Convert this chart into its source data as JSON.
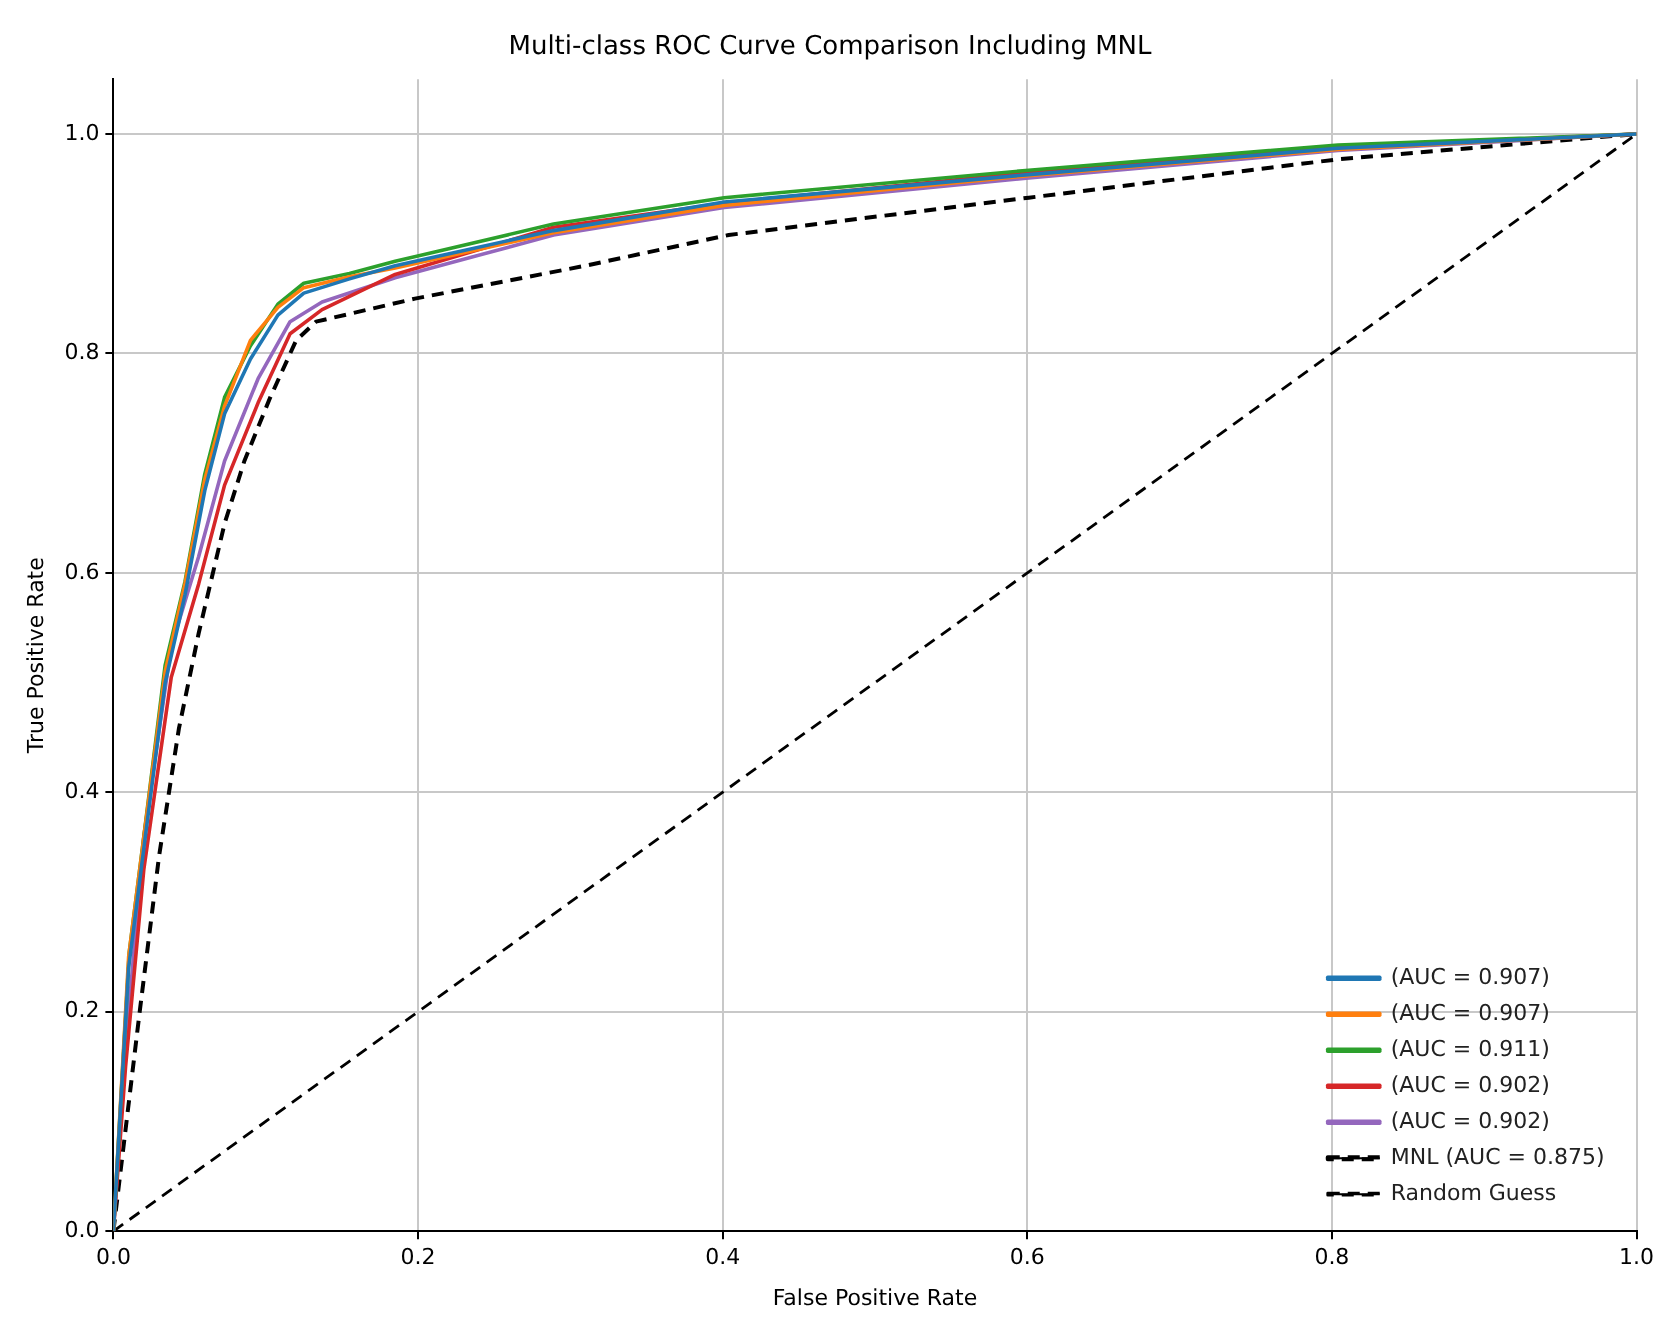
{
  "chart_data": {
    "type": "line",
    "title": "Multi-class ROC Curve Comparison Including MNL",
    "xlabel": "False Positive Rate",
    "ylabel": "True Positive Rate",
    "xlim": [
      0,
      1
    ],
    "ylim": [
      0,
      1.05
    ],
    "xticks": [
      {
        "value": 0,
        "label": "0.0"
      },
      {
        "value": 0.2,
        "label": "0.2"
      },
      {
        "value": 0.4,
        "label": "0.4"
      },
      {
        "value": 0.6,
        "label": "0.6"
      },
      {
        "value": 0.8,
        "label": "0.8"
      },
      {
        "value": 1,
        "label": "1.0"
      }
    ],
    "yticks": [
      {
        "value": 0,
        "label": "0.0"
      },
      {
        "value": 0.2,
        "label": "0.2"
      },
      {
        "value": 0.4,
        "label": "0.4"
      },
      {
        "value": 0.6,
        "label": "0.6"
      },
      {
        "value": 0.8,
        "label": "0.8"
      },
      {
        "value": 1,
        "label": "1.0"
      }
    ],
    "grid": true,
    "legend": "bottom right",
    "marker": "none",
    "series": [
      {
        "name": "(AUC = 0.907)",
        "color": "#1f77b4",
        "x": [
          0,
          0.01,
          0.021,
          0.034,
          0.047,
          0.06,
          0.073,
          0.09,
          0.108,
          0.125,
          0.155,
          0.185,
          0.289,
          0.401,
          0.601,
          0.804,
          1
        ],
        "values": [
          0,
          0.24,
          0.36,
          0.5,
          0.58,
          0.675,
          0.745,
          0.795,
          0.835,
          0.855,
          0.868,
          0.88,
          0.912,
          0.938,
          0.963,
          0.987,
          1
        ]
      },
      {
        "name": "(AUC = 0.907)",
        "color": "#ff7f0e",
        "x": [
          0,
          0.01,
          0.021,
          0.034,
          0.047,
          0.06,
          0.073,
          0.09,
          0.108,
          0.125,
          0.155,
          0.185,
          0.289,
          0.401,
          0.601,
          0.804,
          1
        ],
        "values": [
          0,
          0.25,
          0.37,
          0.51,
          0.59,
          0.685,
          0.752,
          0.812,
          0.842,
          0.86,
          0.87,
          0.878,
          0.91,
          0.935,
          0.962,
          0.986,
          1
        ]
      },
      {
        "name": "(AUC = 0.911)",
        "color": "#2ca02c",
        "x": [
          0,
          0.0104,
          0.021,
          0.034,
          0.047,
          0.06,
          0.073,
          0.09,
          0.108,
          0.125,
          0.155,
          0.185,
          0.289,
          0.401,
          0.601,
          0.804,
          1
        ],
        "values": [
          0,
          0.254,
          0.371,
          0.516,
          0.592,
          0.69,
          0.76,
          0.807,
          0.845,
          0.864,
          0.873,
          0.884,
          0.918,
          0.942,
          0.967,
          0.99,
          1
        ]
      },
      {
        "name": "(AUC = 0.902)",
        "color": "#d62728",
        "x": [
          0,
          0.008,
          0.02,
          0.038,
          0.056,
          0.073,
          0.095,
          0.116,
          0.137,
          0.185,
          0.289,
          0.401,
          0.601,
          0.804,
          1
        ],
        "values": [
          0,
          0.15,
          0.33,
          0.505,
          0.59,
          0.68,
          0.755,
          0.818,
          0.84,
          0.872,
          0.915,
          0.937,
          0.965,
          0.988,
          1
        ]
      },
      {
        "name": "(AUC = 0.902)",
        "color": "#9467bd",
        "x": [
          0,
          0.008,
          0.02,
          0.038,
          0.056,
          0.073,
          0.095,
          0.116,
          0.137,
          0.185,
          0.289,
          0.401,
          0.601,
          0.804,
          1
        ],
        "values": [
          0,
          0.167,
          0.36,
          0.533,
          0.615,
          0.702,
          0.777,
          0.829,
          0.847,
          0.869,
          0.908,
          0.933,
          0.96,
          0.985,
          1
        ]
      },
      {
        "name": "MNL (AUC = 0.875)",
        "color": "#000000",
        "line_style": "dashed",
        "x": [
          0,
          0.017,
          0.03,
          0.043,
          0.056,
          0.073,
          0.086,
          0.103,
          0.12,
          0.133,
          0.198,
          0.31,
          0.404,
          0.601,
          0.804,
          1
        ],
        "values": [
          0,
          0.197,
          0.342,
          0.458,
          0.545,
          0.645,
          0.702,
          0.76,
          0.812,
          0.829,
          0.85,
          0.88,
          0.908,
          0.942,
          0.977,
          1
        ]
      },
      {
        "name": "Random Guess",
        "color": "#000000",
        "line_style": "dashed",
        "x": [
          0,
          1
        ],
        "values": [
          0,
          1
        ]
      }
    ]
  }
}
